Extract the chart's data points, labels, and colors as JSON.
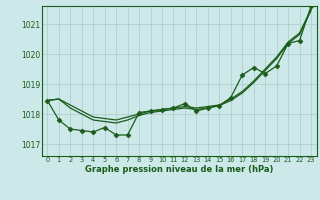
{
  "title": "Graphe pression niveau de la mer (hPa)",
  "bg_color": "#cce8e8",
  "plot_bg_color": "#cce8e8",
  "grid_color": "#aacccc",
  "line_color": "#1a5c1a",
  "xlim": [
    -0.5,
    23.5
  ],
  "ylim": [
    1016.6,
    1021.6
  ],
  "yticks": [
    1017,
    1018,
    1019,
    1020,
    1021
  ],
  "xticks": [
    0,
    1,
    2,
    3,
    4,
    5,
    6,
    7,
    8,
    9,
    10,
    11,
    12,
    13,
    14,
    15,
    16,
    17,
    18,
    19,
    20,
    21,
    22,
    23
  ],
  "series_smooth1": [
    1018.45,
    1018.5,
    1018.3,
    1018.1,
    1017.9,
    1017.85,
    1017.8,
    1017.9,
    1018.0,
    1018.1,
    1018.15,
    1018.2,
    1018.25,
    1018.2,
    1018.25,
    1018.3,
    1018.5,
    1018.75,
    1019.1,
    1019.5,
    1019.9,
    1020.4,
    1020.7,
    1021.5
  ],
  "series_smooth2": [
    1018.45,
    1018.5,
    1018.2,
    1018.0,
    1017.8,
    1017.75,
    1017.7,
    1017.8,
    1017.95,
    1018.05,
    1018.1,
    1018.15,
    1018.2,
    1018.15,
    1018.2,
    1018.28,
    1018.45,
    1018.7,
    1019.05,
    1019.45,
    1019.85,
    1020.35,
    1020.65,
    1021.45
  ],
  "series_markers": [
    1018.45,
    1017.8,
    1017.5,
    1017.45,
    1017.4,
    1017.55,
    1017.3,
    1017.3,
    1018.05,
    1018.1,
    1018.15,
    1018.2,
    1018.35,
    1018.1,
    1018.2,
    1018.28,
    1018.55,
    1019.3,
    1019.55,
    1019.35,
    1019.6,
    1020.35,
    1020.45,
    1021.6
  ]
}
